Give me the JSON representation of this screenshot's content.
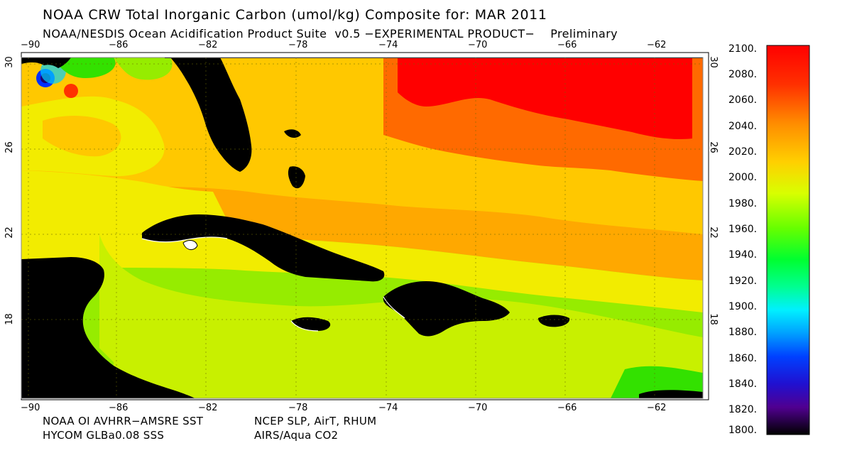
{
  "header": {
    "title": "NOAA CRW Total Inorganic Carbon (umol/kg) Composite for: MAR 2011",
    "subtitle": "NOAA/NESDIS Ocean Acidification Product Suite  v0.5 −EXPERIMENTAL PRODUCT−    Preliminary"
  },
  "axes": {
    "longitudes": [
      "−90",
      "−86",
      "−82",
      "−78",
      "−74",
      "−70",
      "−66",
      "−62"
    ],
    "latitudes": [
      "30",
      "26",
      "22",
      "18"
    ]
  },
  "colorbar": {
    "labels": [
      "2100.",
      "2080.",
      "2060.",
      "2040.",
      "2020.",
      "2000.",
      "1980.",
      "1960.",
      "1940.",
      "1920.",
      "1900.",
      "1880.",
      "1860.",
      "1840.",
      "1820.",
      "1800."
    ],
    "min": 1800,
    "max": 2100,
    "units": "umol/kg"
  },
  "credits": {
    "left_line1": "NOAA OI AVHRR−AMSRE SST",
    "left_line2": "HYCOM GLBa0.08 SSS",
    "right_line1": "NCEP SLP, AirT, RHUM",
    "right_line2": "AIRS/Aqua CO2"
  },
  "colors": {
    "land": "#000000",
    "c2090": "#ff0000",
    "c2060": "#ff6a00",
    "c2045": "#ffa800",
    "c2035": "#ffc800",
    "c2025": "#f2ec00",
    "c2010": "#c8f000",
    "c2000": "#96ec00",
    "c1980": "#33e100"
  }
}
